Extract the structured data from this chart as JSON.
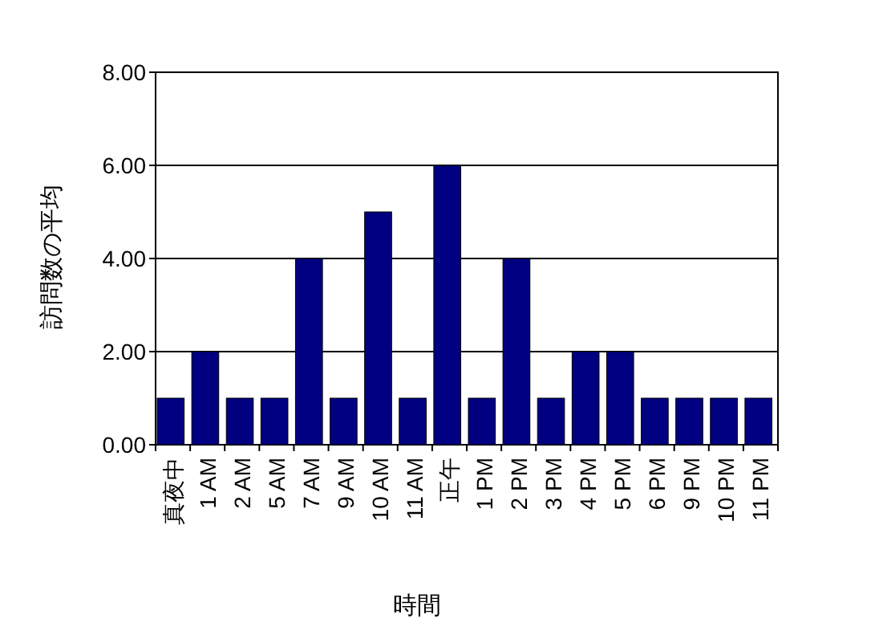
{
  "chart_data": {
    "type": "bar",
    "xlabel": "時間",
    "ylabel": "訪問数の平均",
    "categories": [
      "真夜中",
      "1 AM",
      "2 AM",
      "5 AM",
      "7 AM",
      "9 AM",
      "10 AM",
      "11 AM",
      "正午",
      "1 PM",
      "2 PM",
      "3 PM",
      "4 PM",
      "5 PM",
      "6 PM",
      "9 PM",
      "10 PM",
      "11 PM"
    ],
    "values": [
      1,
      2,
      1,
      1,
      4,
      1,
      5,
      1,
      6,
      1,
      4,
      1,
      2,
      2,
      1,
      1,
      1,
      1
    ],
    "color": "#000080",
    "ylim": [
      0,
      8
    ],
    "yticks": [
      {
        "value": 0,
        "label": "0.00"
      },
      {
        "value": 2,
        "label": "2.00"
      },
      {
        "value": 4,
        "label": "4.00"
      },
      {
        "value": 6,
        "label": "6.00"
      },
      {
        "value": 8,
        "label": "8.00"
      }
    ],
    "grid": "y"
  }
}
